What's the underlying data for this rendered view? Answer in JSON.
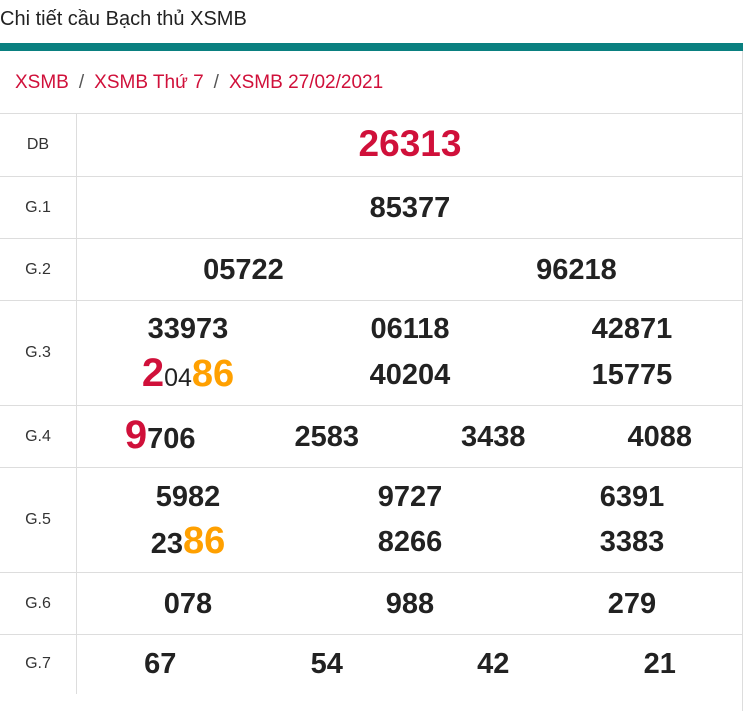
{
  "page_title": "Chi tiết cầu Bạch thủ XSMB",
  "breadcrumb": [
    "XSMB",
    "XSMB Thứ 7",
    "XSMB 27/02/2021"
  ],
  "colors": {
    "accent_bar": "#0a8080",
    "link": "#d0103a",
    "highlight_red": "#d0103a",
    "highlight_orange": "#ffa000"
  },
  "prizes": [
    {
      "label": "DB",
      "cols": 1,
      "numbers": [
        [
          {
            "t": "26313",
            "s": "db"
          }
        ]
      ]
    },
    {
      "label": "G.1",
      "cols": 1,
      "numbers": [
        [
          {
            "t": "85377",
            "s": ""
          }
        ]
      ]
    },
    {
      "label": "G.2",
      "cols": 2,
      "numbers": [
        [
          {
            "t": "05722",
            "s": ""
          }
        ],
        [
          {
            "t": "96218",
            "s": ""
          }
        ]
      ]
    },
    {
      "label": "G.3",
      "cols": 3,
      "numbers": [
        [
          {
            "t": "33973",
            "s": ""
          }
        ],
        [
          {
            "t": "06118",
            "s": ""
          }
        ],
        [
          {
            "t": "42871",
            "s": ""
          }
        ],
        [
          {
            "t": "2",
            "s": "red"
          },
          {
            "t": "04",
            "s": "small"
          },
          {
            "t": "86",
            "s": "orange"
          }
        ],
        [
          {
            "t": "40204",
            "s": ""
          }
        ],
        [
          {
            "t": "15775",
            "s": ""
          }
        ]
      ]
    },
    {
      "label": "G.4",
      "cols": 4,
      "numbers": [
        [
          {
            "t": "9",
            "s": "red"
          },
          {
            "t": "706",
            "s": ""
          }
        ],
        [
          {
            "t": "2583",
            "s": ""
          }
        ],
        [
          {
            "t": "3438",
            "s": ""
          }
        ],
        [
          {
            "t": "4088",
            "s": ""
          }
        ]
      ]
    },
    {
      "label": "G.5",
      "cols": 3,
      "numbers": [
        [
          {
            "t": "5982",
            "s": ""
          }
        ],
        [
          {
            "t": "9727",
            "s": ""
          }
        ],
        [
          {
            "t": "6391",
            "s": ""
          }
        ],
        [
          {
            "t": "23",
            "s": ""
          },
          {
            "t": "86",
            "s": "orange"
          }
        ],
        [
          {
            "t": "8266",
            "s": ""
          }
        ],
        [
          {
            "t": "3383",
            "s": ""
          }
        ]
      ]
    },
    {
      "label": "G.6",
      "cols": 3,
      "numbers": [
        [
          {
            "t": "078",
            "s": ""
          }
        ],
        [
          {
            "t": "988",
            "s": ""
          }
        ],
        [
          {
            "t": "279",
            "s": ""
          }
        ]
      ]
    },
    {
      "label": "G.7",
      "cols": 4,
      "numbers": [
        [
          {
            "t": "67",
            "s": ""
          }
        ],
        [
          {
            "t": "54",
            "s": ""
          }
        ],
        [
          {
            "t": "42",
            "s": ""
          }
        ],
        [
          {
            "t": "21",
            "s": ""
          }
        ]
      ]
    }
  ]
}
